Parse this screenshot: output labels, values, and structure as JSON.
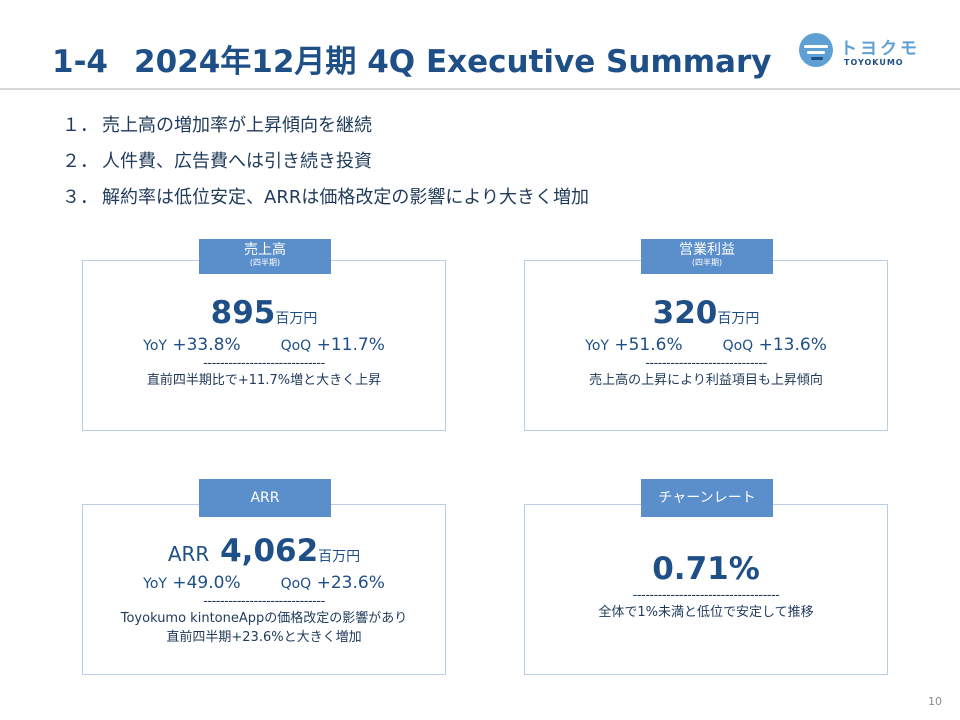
{
  "header": {
    "section": "1-4",
    "title": "2024年12月期 4Q Executive Summary",
    "logo_jp": "トヨクモ",
    "logo_en": "TOYOKUMO"
  },
  "points": [
    {
      "num": "１．",
      "text": "売上高の増加率が上昇傾向を継続"
    },
    {
      "num": "２．",
      "text": "人件費、広告費へは引き続き投資"
    },
    {
      "num": "３．",
      "text": "解約率は低位安定、ARRは価格改定の影響により大きく増加"
    }
  ],
  "cards": {
    "sales": {
      "badge": "売上高",
      "badge_sub": "(四半期)",
      "value": "895",
      "unit": "百万円",
      "yoy_label": "YoY",
      "yoy": "+33.8%",
      "qoq_label": "QoQ",
      "qoq": "+11.7%",
      "dashes": "-----------------------------",
      "note": "直前四半期比で+11.7%増と大きく上昇"
    },
    "profit": {
      "badge": "営業利益",
      "badge_sub": "(四半期)",
      "value": "320",
      "unit": "百万円",
      "yoy_label": "YoY",
      "yoy": "+51.6%",
      "qoq_label": "QoQ",
      "qoq": "+13.6%",
      "dashes": "-----------------------------",
      "note": "売上高の上昇により利益項目も上昇傾向"
    },
    "arr": {
      "badge": "ARR",
      "prefix": "ARR",
      "value": "4,062",
      "unit": "百万円",
      "yoy_label": "YoY",
      "yoy": "+49.0%",
      "qoq_label": "QoQ",
      "qoq": "+23.6%",
      "dashes": "-----------------------------",
      "note1": "Toyokumo kintoneAppの価格改定の影響があり",
      "note2": "直前四半期+23.6%と大きく増加"
    },
    "churn": {
      "badge": "チャーンレート",
      "value": "0.71%",
      "dashes": "-----------------------------------",
      "note": "全体で1%未満と低位で安定して推移"
    }
  },
  "page_number": "10",
  "colors": {
    "title": "#1e4f86",
    "badge": "#5b8fcb",
    "card_border": "#b9cde3",
    "logo_light": "#5fa0d4"
  }
}
